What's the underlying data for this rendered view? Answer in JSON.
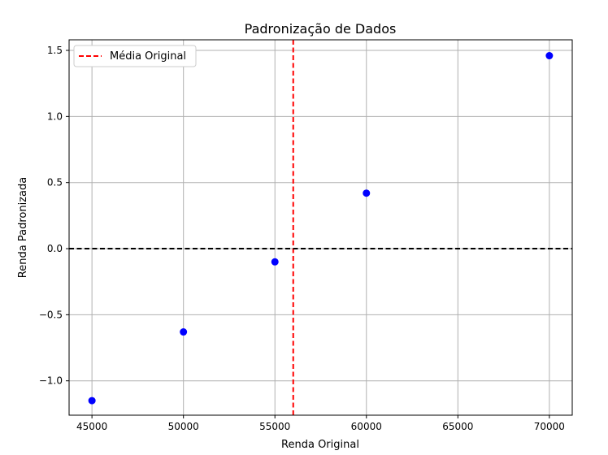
{
  "chart_data": {
    "type": "scatter",
    "title": "Padronização de Dados",
    "xlabel": "Renda Original",
    "ylabel": "Renda Padronizada",
    "xlim": [
      43750,
      71250
    ],
    "ylim": [
      -1.26,
      1.58
    ],
    "xticks": [
      45000,
      50000,
      55000,
      60000,
      65000,
      70000
    ],
    "xtick_labels": [
      "45000",
      "50000",
      "55000",
      "60000",
      "65000",
      "70000"
    ],
    "yticks": [
      -1.0,
      -0.5,
      0.0,
      0.5,
      1.0,
      1.5
    ],
    "ytick_labels": [
      "−1.0",
      "−0.5",
      "0.0",
      "0.5",
      "1.0",
      "1.5"
    ],
    "grid": true,
    "series": [
      {
        "marker_color": "#0000ff",
        "x": [
          45000,
          50000,
          55000,
          60000,
          70000
        ],
        "y": [
          -1.15,
          -0.63,
          -0.1,
          0.42,
          1.46
        ]
      }
    ],
    "reference_lines": [
      {
        "orientation": "vertical",
        "x": 56000,
        "color": "#ff0000",
        "style": "dashed",
        "label": "Média Original"
      },
      {
        "orientation": "horizontal",
        "y": 0.0,
        "color": "#000000",
        "style": "dashed"
      }
    ],
    "legend": {
      "position": "top-left",
      "entries": [
        "Média Original"
      ]
    }
  }
}
